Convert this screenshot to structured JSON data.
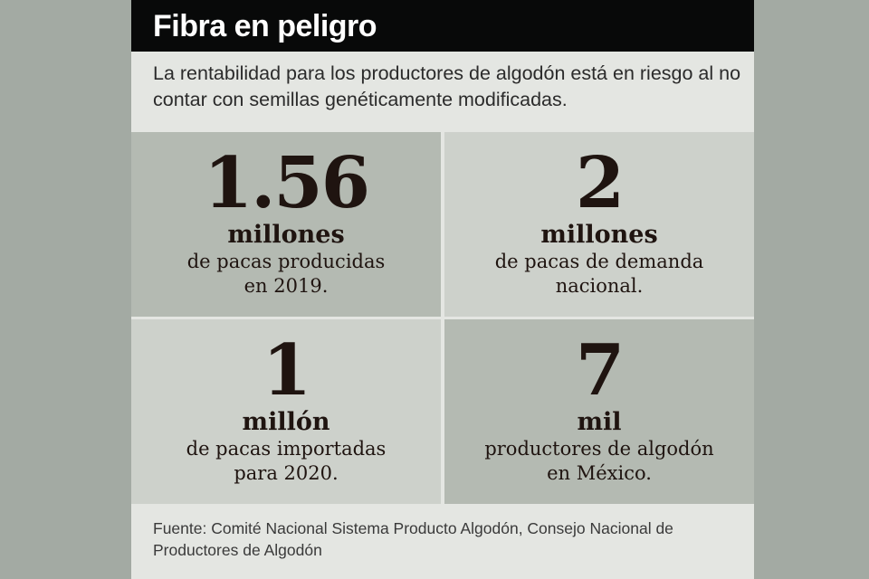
{
  "header": {
    "title": "Fibra en peligro"
  },
  "intro": "La rentabilidad para los productores de algodón está en riesgo al no contar con semillas genéticamente modificadas.",
  "stats": [
    {
      "value": "1.56",
      "unit": "millones",
      "line1": "de pacas producidas",
      "line2": "en 2019."
    },
    {
      "value": "2",
      "unit": "millones",
      "line1": "de pacas de demanda",
      "line2": "nacional."
    },
    {
      "value": "1",
      "unit": "millón",
      "line1": "de pacas importadas",
      "line2": "para 2020."
    },
    {
      "value": "7",
      "unit": "mil",
      "line1": "productores de algodón",
      "line2": "en México."
    }
  ],
  "source": "Fuente: Comité Nacional Sistema Producto Algodón, Consejo Nacional de Productores de Algodón",
  "colors": {
    "header_bg": "#080909",
    "card_bg": "#e4e6e2",
    "dark_cell": "#b4bab2",
    "light_cell": "#cdd1cb",
    "page_bg": "#a3aaa3"
  }
}
